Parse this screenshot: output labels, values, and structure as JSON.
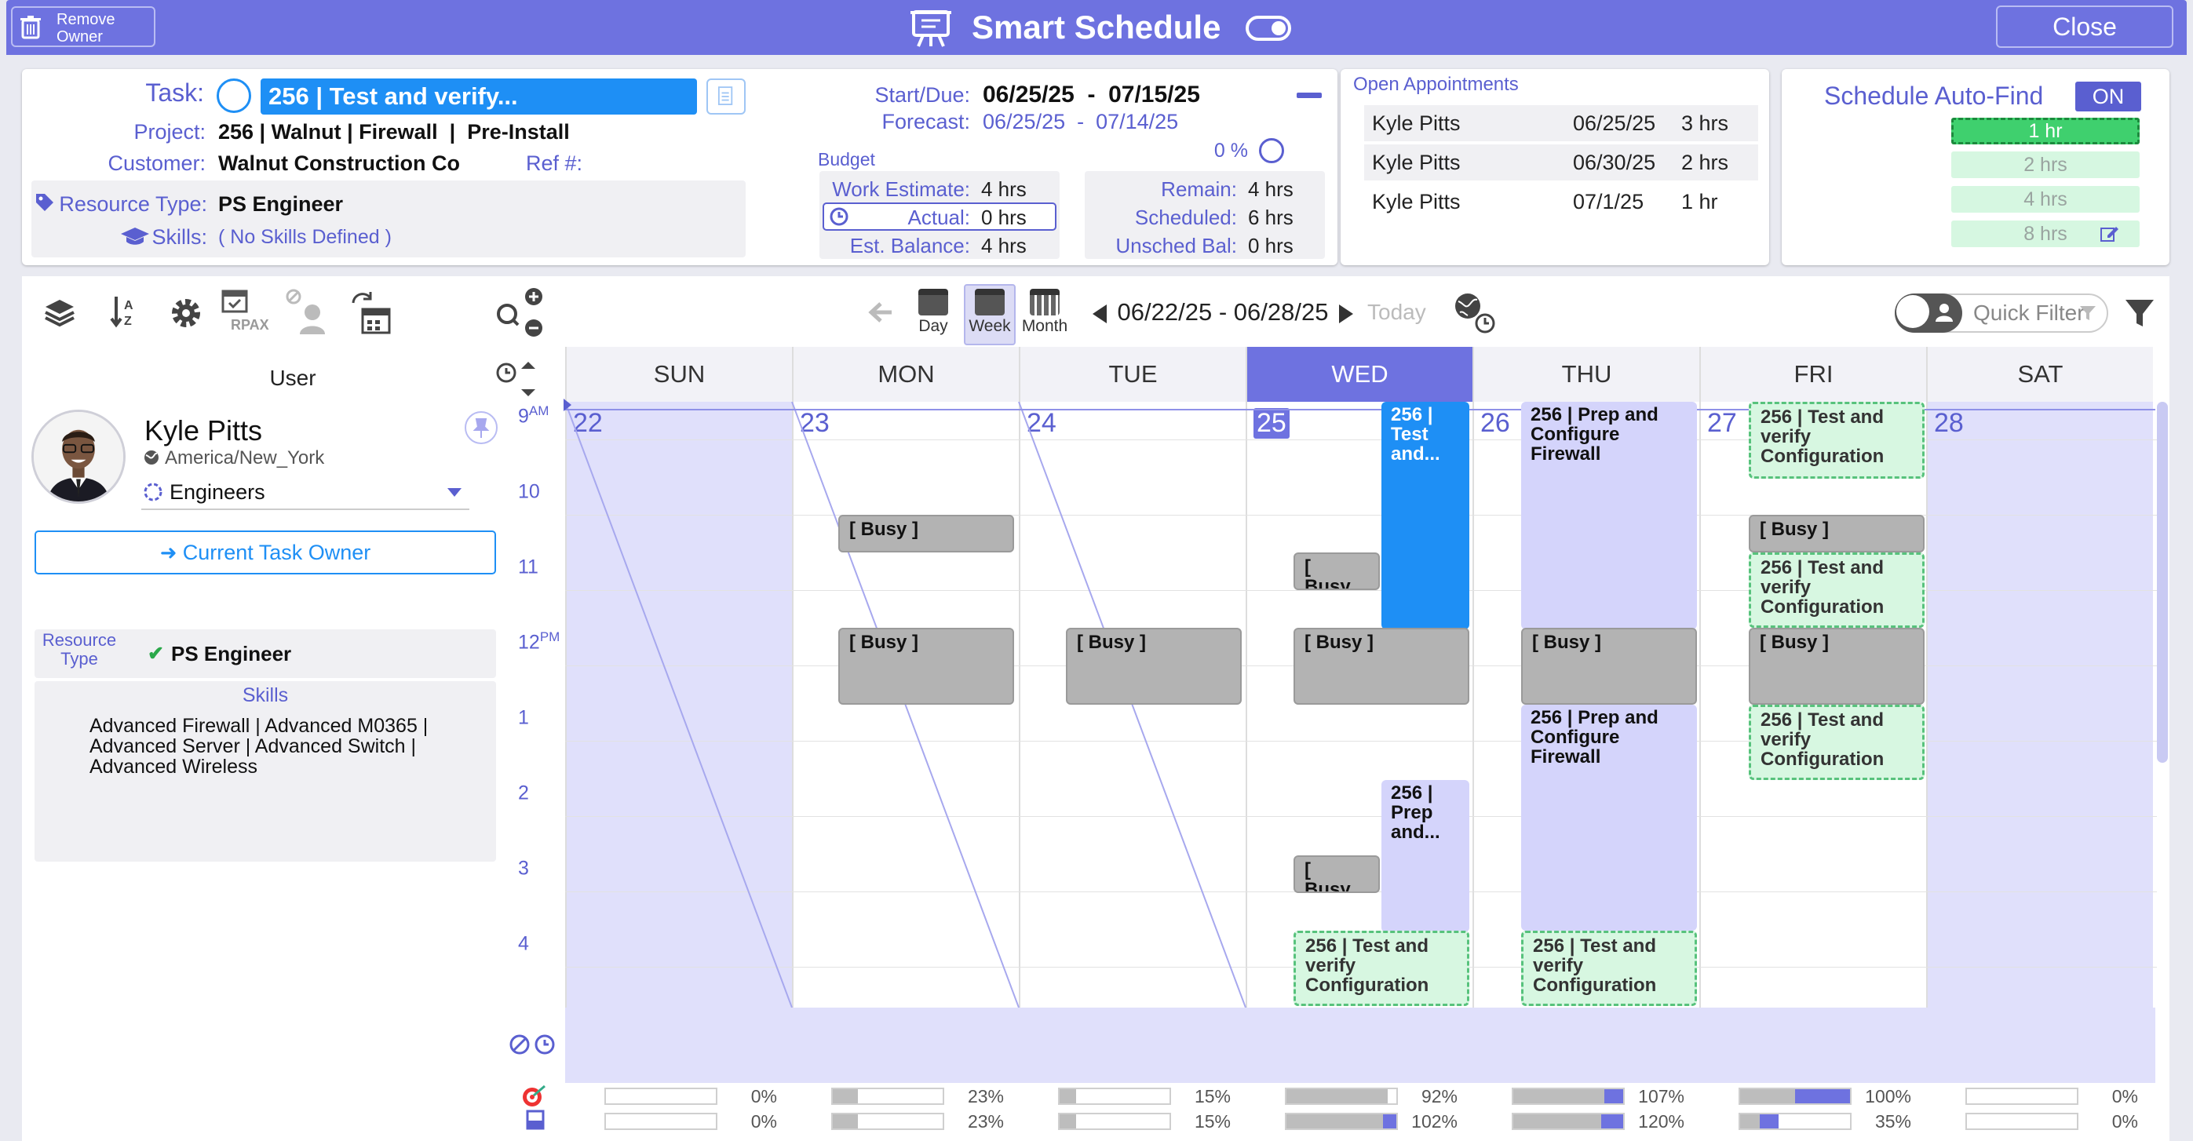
{
  "titlebar": {
    "remove_owner": "Remove Owner",
    "title": "Smart Schedule",
    "close": "Close"
  },
  "task": {
    "task_label": "Task:",
    "task_value": "256 | Test and verify...",
    "project_label": "Project:",
    "project_value": "256 | Walnut | Firewall  |  Pre-Install",
    "customer_label": "Customer:",
    "customer_value": "Walnut Construction Co",
    "ref_label": "Ref #:",
    "resource_type_label": "Resource Type:",
    "resource_type_value": "PS Engineer",
    "skills_label": "Skills:",
    "skills_value": "( No Skills Defined )",
    "startdue_label": "Start/Due:",
    "startdue_value": "06/25/25  -  07/15/25",
    "forecast_label": "Forecast:",
    "forecast_value": "06/25/25  -  07/14/25",
    "percent": "0 %",
    "budget_label": "Budget",
    "work_estimate_label": "Work Estimate:",
    "work_estimate_value": "4 hrs",
    "actual_label": "Actual:",
    "actual_value": "0 hrs",
    "est_balance_label": "Est. Balance:",
    "est_balance_value": "4 hrs",
    "remain_label": "Remain:",
    "remain_value": "4 hrs",
    "scheduled_label": "Scheduled:",
    "scheduled_value": "6 hrs",
    "unsched_label": "Unsched Bal:",
    "unsched_value": "0 hrs"
  },
  "appointments": {
    "title": "Open Appointments",
    "rows": [
      {
        "name": "Kyle Pitts",
        "date": "06/25/25",
        "hrs": "3 hrs"
      },
      {
        "name": "Kyle Pitts",
        "date": "06/30/25",
        "hrs": "2 hrs"
      },
      {
        "name": "Kyle Pitts",
        "date": "07/1/25",
        "hrs": "1 hr"
      }
    ]
  },
  "autofind": {
    "title": "Schedule Auto-Find",
    "state": "ON",
    "options": [
      "1 hr",
      "2 hrs",
      "4 hrs",
      "8 hrs"
    ],
    "selected": "1 hr"
  },
  "toolbar": {
    "day": "Day",
    "week": "Week",
    "month": "Month",
    "date_range": "06/22/25  -  06/28/25",
    "today": "Today",
    "quick_filter": "Quick Filter",
    "rpax": "RPAX"
  },
  "calendar": {
    "user_header": "User",
    "days": [
      {
        "name": "SUN",
        "num": "22"
      },
      {
        "name": "MON",
        "num": "23"
      },
      {
        "name": "TUE",
        "num": "24"
      },
      {
        "name": "WED",
        "num": "25"
      },
      {
        "name": "THU",
        "num": "26"
      },
      {
        "name": "FRI",
        "num": "27"
      },
      {
        "name": "SAT",
        "num": "28"
      }
    ],
    "today_index": 3,
    "hours": [
      {
        "num": "9",
        "suffix": "AM"
      },
      {
        "num": "10",
        "suffix": ""
      },
      {
        "num": "11",
        "suffix": ""
      },
      {
        "num": "12",
        "suffix": "PM"
      },
      {
        "num": "1",
        "suffix": ""
      },
      {
        "num": "2",
        "suffix": ""
      },
      {
        "num": "3",
        "suffix": ""
      },
      {
        "num": "4",
        "suffix": ""
      }
    ],
    "events": {
      "mon_busy1": "[ Busy ]",
      "mon_busy2": "[ Busy ]",
      "tue_busy": "[ Busy ]",
      "wed_busy1": "[ Busy...",
      "wed_busy2": "[ Busy ]",
      "wed_busy3": "[ Busy...",
      "wed_task": "256 | Test and...",
      "wed_prep": "256 | Prep and...",
      "wed_test": "256 | Test and verify Configuration",
      "thu_prep1": "256 | Prep and Configure Firewall",
      "thu_busy": "[ Busy ]",
      "thu_prep2": "256 | Prep and Configure Firewall",
      "thu_test": "256 | Test and verify Configuration",
      "fri_test1": "256 | Test and verify Configuration",
      "fri_busy1": "[ Busy ]",
      "fri_test2": "256 | Test and verify Configuration",
      "fri_busy2": "[ Busy ]",
      "fri_test3": "256 | Test and verify Configuration"
    },
    "utilization": [
      {
        "a": "0%",
        "b": "0%",
        "av": 0,
        "bv": 0
      },
      {
        "a": "23%",
        "b": "23%",
        "av": 23,
        "bv": 23
      },
      {
        "a": "15%",
        "b": "15%",
        "av": 15,
        "bv": 15
      },
      {
        "a": "92%",
        "b": "102%",
        "av": 92,
        "bv": 102
      },
      {
        "a": "107%",
        "b": "120%",
        "av": 107,
        "bv": 120
      },
      {
        "a": "100%",
        "b": "35%",
        "av": 100,
        "bv": 35
      },
      {
        "a": "0%",
        "b": "0%",
        "av": 0,
        "bv": 0
      }
    ]
  },
  "user": {
    "name": "Kyle Pitts",
    "timezone": "America/New_York",
    "group": "Engineers",
    "current_owner": "Current Task Owner",
    "resource_type_label": "Resource Type",
    "resource_type_value": "PS Engineer",
    "skills_label": "Skills",
    "skills_value": "Advanced Firewall | Advanced M0365 | Advanced Server | Advanced Switch | Advanced Wireless"
  },
  "colors": {
    "accent": "#6e72e0",
    "blue": "#1e8ff5",
    "busy": "#b3b3b3",
    "green": "#57c27c"
  }
}
